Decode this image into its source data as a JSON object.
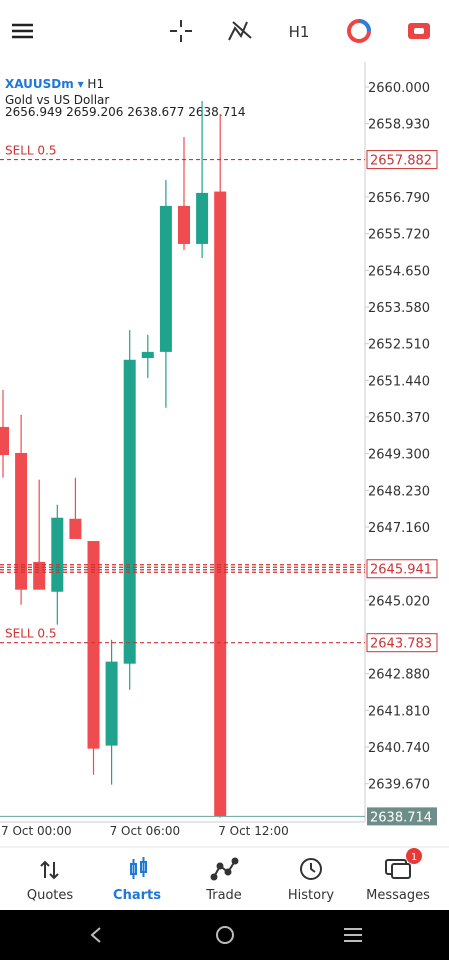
{
  "toolbar": {
    "timeframe": "H1"
  },
  "chart_data": {
    "type": "candlestick",
    "symbol": "XAUUSDm",
    "timeframe": "H1",
    "description": "Gold vs US Dollar",
    "categories": [
      "7 Oct 00:00",
      null,
      null,
      null,
      null,
      null,
      "7 Oct 06:00",
      null,
      null,
      null,
      null,
      null,
      "7 Oct 12:00"
    ],
    "open": [
      2650.08,
      2649.32,
      2646.14,
      2645.27,
      2647.4,
      2646.75,
      2640.78,
      2643.17,
      2652.09,
      2652.27,
      2656.53,
      2655.42,
      2656.949
    ],
    "high": [
      2651.16,
      2650.43,
      2648.54,
      2647.81,
      2648.6,
      2646.75,
      2643.87,
      2652.91,
      2652.77,
      2657.29,
      2658.54,
      2659.59,
      2659.206
    ],
    "low": [
      2648.6,
      2644.89,
      2645.33,
      2644.31,
      2646.81,
      2639.93,
      2639.64,
      2642.41,
      2651.51,
      2650.64,
      2655.24,
      2655.01,
      2638.677
    ],
    "close": [
      2649.26,
      2645.33,
      2645.33,
      2647.43,
      2646.81,
      2640.69,
      2643.23,
      2652.04,
      2652.27,
      2656.53,
      2655.42,
      2656.91,
      2638.714
    ],
    "up_color": "#1fa38c",
    "down_color": "#f04b4f",
    "ylim": [
      2638.55,
      2660.73
    ],
    "yticks": [
      {
        "value": 2660,
        "label": "2660.000"
      },
      {
        "value": 2658.93,
        "label": "2658.930"
      },
      {
        "value": 2656.79,
        "label": "2656.790"
      },
      {
        "value": 2655.72,
        "label": "2655.720"
      },
      {
        "value": 2654.65,
        "label": "2654.650"
      },
      {
        "value": 2653.58,
        "label": "2653.580"
      },
      {
        "value": 2652.51,
        "label": "2652.510"
      },
      {
        "value": 2651.44,
        "label": "2651.440"
      },
      {
        "value": 2650.37,
        "label": "2650.370"
      },
      {
        "value": 2649.3,
        "label": "2649.300"
      },
      {
        "value": 2648.23,
        "label": "2648.230"
      },
      {
        "value": 2647.16,
        "label": "2647.160"
      },
      {
        "value": 2645.02,
        "label": "2645.020"
      },
      {
        "value": 2642.88,
        "label": "2642.880"
      },
      {
        "value": 2641.81,
        "label": "2641.810"
      },
      {
        "value": 2640.74,
        "label": "2640.740"
      },
      {
        "value": 2639.67,
        "label": "2639.670"
      }
    ],
    "orders": [
      {
        "label": "SELL 0.5",
        "price": 2657.882
      },
      {
        "price": 2645.941
      },
      {
        "label": "SELL 0.5",
        "price": 2643.783
      }
    ]
  },
  "nav": {
    "items": [
      "Quotes",
      "Charts",
      "Trade",
      "History",
      "Messages"
    ],
    "active": "Charts",
    "badge": 1
  }
}
